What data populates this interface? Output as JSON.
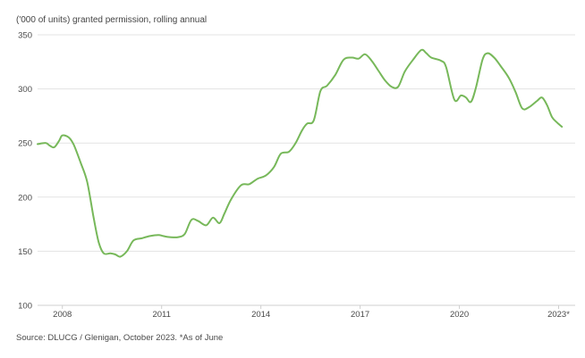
{
  "chart_data": {
    "type": "line",
    "subtitle": "('000 of units) granted permission, rolling annual",
    "ylim": [
      100,
      350
    ],
    "yticks": [
      100,
      150,
      200,
      250,
      300,
      350
    ],
    "xlim": [
      2007.25,
      2023.5
    ],
    "xticks": [
      {
        "value": 2008,
        "label": "2008"
      },
      {
        "value": 2011,
        "label": "2011"
      },
      {
        "value": 2014,
        "label": "2014"
      },
      {
        "value": 2017,
        "label": "2017"
      },
      {
        "value": 2020,
        "label": "2020"
      },
      {
        "value": 2023,
        "label": "2023*"
      }
    ],
    "grid": true,
    "series": [
      {
        "color": "#77b85a",
        "points": [
          [
            2007.25,
            249
          ],
          [
            2007.5,
            250
          ],
          [
            2007.6,
            248
          ],
          [
            2007.75,
            246
          ],
          [
            2007.9,
            252
          ],
          [
            2008.0,
            257
          ],
          [
            2008.2,
            255
          ],
          [
            2008.35,
            248
          ],
          [
            2008.55,
            232
          ],
          [
            2008.75,
            214
          ],
          [
            2008.95,
            180
          ],
          [
            2009.1,
            158
          ],
          [
            2009.25,
            148
          ],
          [
            2009.45,
            148
          ],
          [
            2009.6,
            147
          ],
          [
            2009.75,
            145
          ],
          [
            2009.95,
            150
          ],
          [
            2010.15,
            160
          ],
          [
            2010.4,
            162
          ],
          [
            2010.65,
            164
          ],
          [
            2010.9,
            165
          ],
          [
            2011.05,
            164
          ],
          [
            2011.25,
            163
          ],
          [
            2011.5,
            163
          ],
          [
            2011.7,
            166
          ],
          [
            2011.9,
            179
          ],
          [
            2012.1,
            178
          ],
          [
            2012.35,
            174
          ],
          [
            2012.55,
            181
          ],
          [
            2012.75,
            176
          ],
          [
            2012.9,
            185
          ],
          [
            2013.1,
            198
          ],
          [
            2013.4,
            211
          ],
          [
            2013.65,
            212
          ],
          [
            2013.9,
            217
          ],
          [
            2014.15,
            220
          ],
          [
            2014.4,
            228
          ],
          [
            2014.6,
            240
          ],
          [
            2014.85,
            242
          ],
          [
            2015.05,
            250
          ],
          [
            2015.25,
            262
          ],
          [
            2015.4,
            268
          ],
          [
            2015.6,
            271
          ],
          [
            2015.8,
            298
          ],
          [
            2016.0,
            303
          ],
          [
            2016.25,
            313
          ],
          [
            2016.5,
            327
          ],
          [
            2016.75,
            329
          ],
          [
            2016.95,
            328
          ],
          [
            2017.15,
            332
          ],
          [
            2017.35,
            326
          ],
          [
            2017.55,
            317
          ],
          [
            2017.75,
            308
          ],
          [
            2017.95,
            302
          ],
          [
            2018.15,
            302
          ],
          [
            2018.35,
            316
          ],
          [
            2018.6,
            327
          ],
          [
            2018.85,
            336
          ],
          [
            2019.0,
            333
          ],
          [
            2019.15,
            329
          ],
          [
            2019.45,
            326
          ],
          [
            2019.6,
            320
          ],
          [
            2019.85,
            290
          ],
          [
            2020.05,
            294
          ],
          [
            2020.2,
            292
          ],
          [
            2020.35,
            288
          ],
          [
            2020.5,
            301
          ],
          [
            2020.7,
            327
          ],
          [
            2020.85,
            333
          ],
          [
            2021.05,
            329
          ],
          [
            2021.25,
            321
          ],
          [
            2021.5,
            310
          ],
          [
            2021.7,
            297
          ],
          [
            2021.9,
            282
          ],
          [
            2022.1,
            283
          ],
          [
            2022.35,
            289
          ],
          [
            2022.5,
            292
          ],
          [
            2022.65,
            285
          ],
          [
            2022.8,
            274
          ],
          [
            2022.95,
            269
          ],
          [
            2023.1,
            265
          ]
        ]
      }
    ],
    "source": "Source: DLUCG / Glenigan, October 2023. *As of June"
  }
}
